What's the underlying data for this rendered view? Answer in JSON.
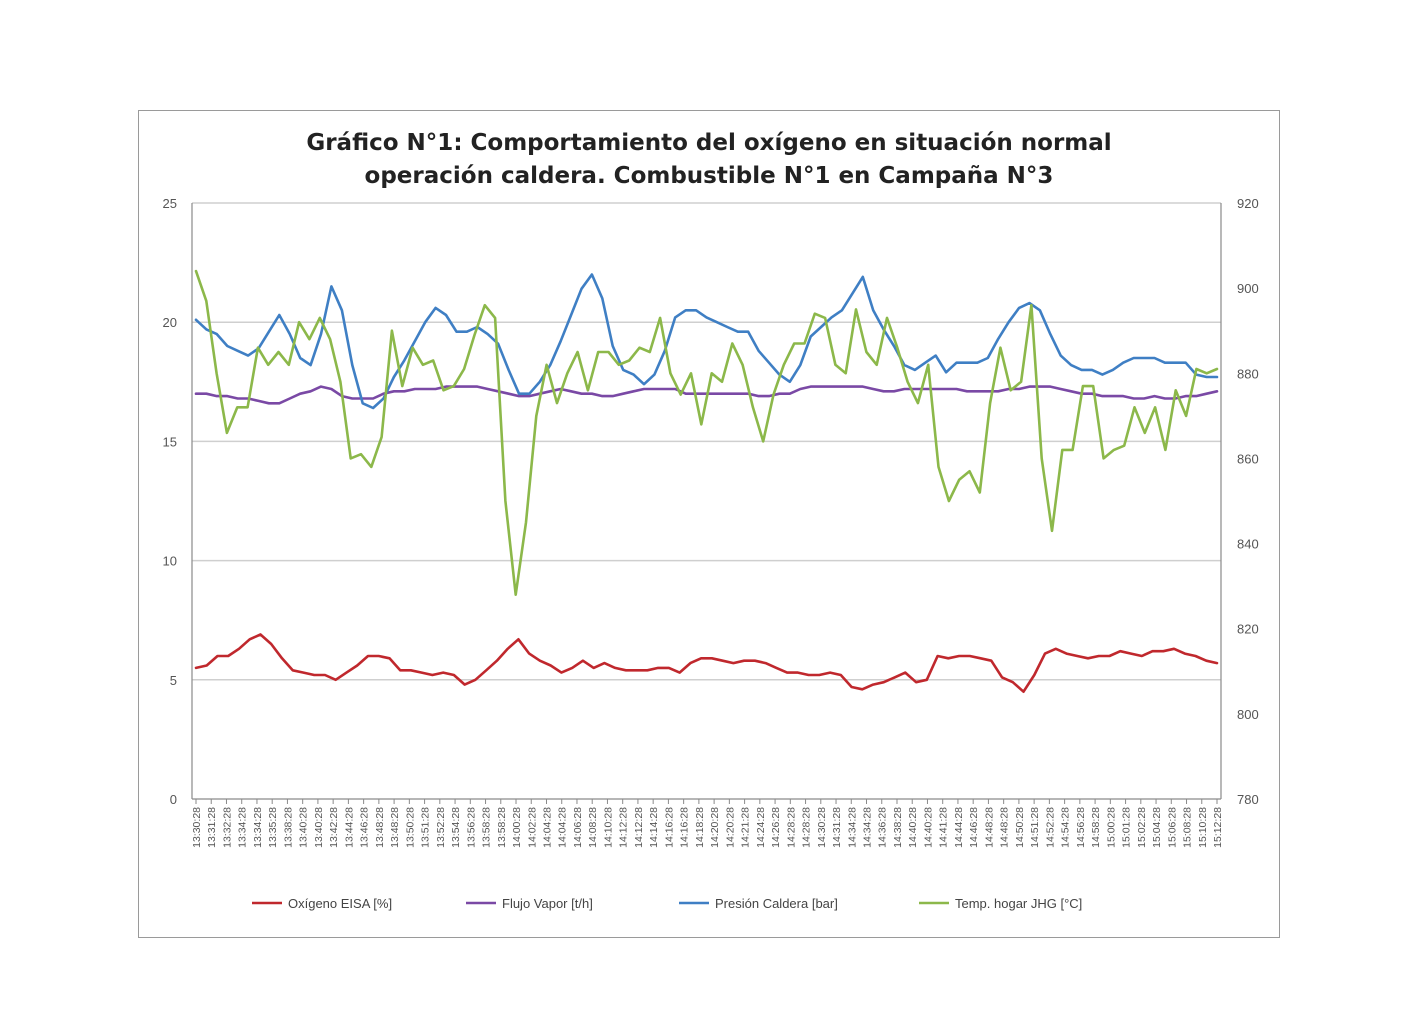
{
  "chart_data": {
    "type": "line",
    "title": [
      "Gráfico N°1: Comportamiento del oxígeno en situación normal",
      "operación caldera. Combustible N°1 en Campaña N°3"
    ],
    "y_left": {
      "min": 0,
      "max": 25,
      "ticks": [
        "0",
        "5",
        "10",
        "15",
        "20",
        "25"
      ]
    },
    "y_right": {
      "min": 780,
      "max": 920,
      "ticks": [
        "780",
        "800",
        "820",
        "840",
        "860",
        "880",
        "900",
        "920"
      ]
    },
    "grid": true,
    "legend_position": "bottom",
    "x_labels": [
      "13:30:28",
      "13:31:28",
      "13:32:28",
      "13:34:28",
      "13:34:28",
      "13:35:28",
      "13:38:28",
      "13:40:28",
      "13:40:28",
      "13:42:28",
      "13:44:28",
      "13:46:28",
      "13:48:28",
      "13:48:28",
      "13:50:28",
      "13:51:28",
      "13:52:28",
      "13:54:28",
      "13:56:28",
      "13:58:28",
      "13:58:28",
      "14:00:28",
      "14:02:28",
      "14:04:28",
      "14:04:28",
      "14:06:28",
      "14:08:28",
      "14:10:28",
      "14:12:28",
      "14:12:28",
      "14:14:28",
      "14:16:28",
      "14:16:28",
      "14:18:28",
      "14:20:28",
      "14:20:28",
      "14:21:28",
      "14:24:28",
      "14:26:28",
      "14:28:28",
      "14:28:28",
      "14:30:28",
      "14:31:28",
      "14:34:28",
      "14:34:28",
      "14:36:28",
      "14:38:28",
      "14:40:28",
      "14:40:28",
      "14:41:28",
      "14:44:28",
      "14:46:28",
      "14:48:28",
      "14:48:28",
      "14:50:28",
      "14:51:28",
      "14:52:28",
      "14:54:28",
      "14:56:28",
      "14:58:28",
      "15:00:28",
      "15:01:28",
      "15:02:28",
      "15:04:28",
      "15:06:28",
      "15:08:28",
      "15:10:28",
      "15:12:28"
    ],
    "series": [
      {
        "name": "Oxígeno EISA [%]",
        "axis": "left",
        "color": "#c0282d",
        "values": [
          5.5,
          5.6,
          6.0,
          6.0,
          6.3,
          6.7,
          6.9,
          6.5,
          5.9,
          5.4,
          5.3,
          5.2,
          5.2,
          5.0,
          5.3,
          5.6,
          6.0,
          6.0,
          5.9,
          5.4,
          5.4,
          5.3,
          5.2,
          5.3,
          5.2,
          4.8,
          5.0,
          5.4,
          5.8,
          6.3,
          6.7,
          6.1,
          5.8,
          5.6,
          5.3,
          5.5,
          5.8,
          5.5,
          5.7,
          5.5,
          5.4,
          5.4,
          5.4,
          5.5,
          5.5,
          5.3,
          5.7,
          5.9,
          5.9,
          5.8,
          5.7,
          5.8,
          5.8,
          5.7,
          5.5,
          5.3,
          5.3,
          5.2,
          5.2,
          5.3,
          5.2,
          4.7,
          4.6,
          4.8,
          4.9,
          5.1,
          5.3,
          4.9,
          5.0,
          6.0,
          5.9,
          6.0,
          6.0,
          5.9,
          5.8,
          5.1,
          4.9,
          4.5,
          5.2,
          6.1,
          6.3,
          6.1,
          6.0,
          5.9,
          6.0,
          6.0,
          6.2,
          6.1,
          6.0,
          6.2,
          6.2,
          6.3,
          6.1,
          6.0,
          5.8,
          5.7
        ]
      },
      {
        "name": "Flujo Vapor [t/h]",
        "axis": "left",
        "color": "#7a49a5",
        "values": [
          17.0,
          17.0,
          16.9,
          16.9,
          16.8,
          16.8,
          16.7,
          16.6,
          16.6,
          16.8,
          17.0,
          17.1,
          17.3,
          17.2,
          16.9,
          16.8,
          16.8,
          16.8,
          17.0,
          17.1,
          17.1,
          17.2,
          17.2,
          17.2,
          17.3,
          17.3,
          17.3,
          17.3,
          17.2,
          17.1,
          17.0,
          16.9,
          16.9,
          17.0,
          17.1,
          17.2,
          17.1,
          17.0,
          17.0,
          16.9,
          16.9,
          17.0,
          17.1,
          17.2,
          17.2,
          17.2,
          17.2,
          17.0,
          17.0,
          17.0,
          17.0,
          17.0,
          17.0,
          17.0,
          16.9,
          16.9,
          17.0,
          17.0,
          17.2,
          17.3,
          17.3,
          17.3,
          17.3,
          17.3,
          17.3,
          17.2,
          17.1,
          17.1,
          17.2,
          17.2,
          17.2,
          17.2,
          17.2,
          17.2,
          17.1,
          17.1,
          17.1,
          17.1,
          17.2,
          17.2,
          17.3,
          17.3,
          17.3,
          17.2,
          17.1,
          17.0,
          17.0,
          16.9,
          16.9,
          16.9,
          16.8,
          16.8,
          16.9,
          16.8,
          16.8,
          16.9,
          16.9,
          17.0,
          17.1
        ]
      },
      {
        "name": "Presión Caldera [bar]",
        "axis": "left",
        "color": "#3f7fc4",
        "values": [
          20.1,
          19.7,
          19.5,
          19.0,
          18.8,
          18.6,
          18.9,
          19.6,
          20.3,
          19.5,
          18.5,
          18.2,
          19.5,
          21.5,
          20.5,
          18.2,
          16.6,
          16.4,
          16.8,
          17.7,
          18.4,
          19.2,
          20.0,
          20.6,
          20.3,
          19.6,
          19.6,
          19.8,
          19.5,
          19.1,
          18.0,
          17.0,
          17.0,
          17.5,
          18.2,
          19.2,
          20.3,
          21.4,
          22.0,
          21.0,
          19.0,
          18.0,
          17.8,
          17.4,
          17.8,
          18.8,
          20.2,
          20.5,
          20.5,
          20.2,
          20.0,
          19.8,
          19.6,
          19.6,
          18.8,
          18.3,
          17.8,
          17.5,
          18.2,
          19.4,
          19.8,
          20.2,
          20.5,
          21.2,
          21.9,
          20.5,
          19.7,
          19.0,
          18.2,
          18.0,
          18.3,
          18.6,
          17.9,
          18.3,
          18.3,
          18.3,
          18.5,
          19.3,
          20.0,
          20.6,
          20.8,
          20.5,
          19.5,
          18.6,
          18.2,
          18.0,
          18.0,
          17.8,
          18.0,
          18.3,
          18.5,
          18.5,
          18.5,
          18.3,
          18.3,
          18.3,
          17.8,
          17.7,
          17.7
        ]
      },
      {
        "name": "Temp.  hogar JHG [°C]",
        "axis": "right",
        "color": "#8cb84a",
        "values": [
          904,
          897,
          880,
          866,
          872,
          872,
          886,
          882,
          885,
          882,
          892,
          888,
          893,
          888,
          878,
          860,
          861,
          858,
          865,
          890,
          877,
          886,
          882,
          883,
          876,
          877,
          881,
          889,
          896,
          893,
          850,
          828,
          845,
          870,
          882,
          873,
          880,
          885,
          876,
          885,
          885,
          882,
          883,
          886,
          885,
          893,
          880,
          875,
          880,
          868,
          880,
          878,
          887,
          882,
          872,
          864,
          875,
          882,
          887,
          887,
          894,
          893,
          882,
          880,
          895,
          885,
          882,
          893,
          886,
          878,
          873,
          882,
          858,
          850,
          855,
          857,
          852,
          873,
          886,
          876,
          878,
          896,
          860,
          843,
          862,
          862,
          877,
          877,
          860,
          862,
          863,
          872,
          866,
          872,
          862,
          876,
          870,
          881,
          880,
          881
        ]
      }
    ]
  }
}
